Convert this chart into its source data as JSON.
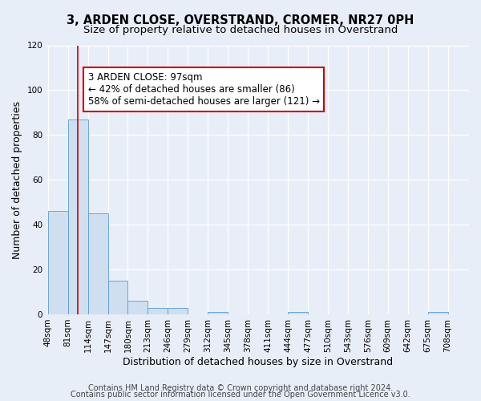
{
  "title": "3, ARDEN CLOSE, OVERSTRAND, CROMER, NR27 0PH",
  "subtitle": "Size of property relative to detached houses in Overstrand",
  "xlabel": "Distribution of detached houses by size in Overstrand",
  "ylabel": "Number of detached properties",
  "bin_labels": [
    "48sqm",
    "81sqm",
    "114sqm",
    "147sqm",
    "180sqm",
    "213sqm",
    "246sqm",
    "279sqm",
    "312sqm",
    "345sqm",
    "378sqm",
    "411sqm",
    "444sqm",
    "477sqm",
    "510sqm",
    "543sqm",
    "576sqm",
    "609sqm",
    "642sqm",
    "675sqm",
    "708sqm"
  ],
  "bin_edges": [
    48,
    81,
    114,
    147,
    180,
    213,
    246,
    279,
    312,
    345,
    378,
    411,
    444,
    477,
    510,
    543,
    576,
    609,
    642,
    675,
    708
  ],
  "bar_heights": [
    46,
    87,
    45,
    15,
    6,
    3,
    3,
    0,
    1,
    0,
    0,
    0,
    1,
    0,
    0,
    0,
    0,
    0,
    0,
    1,
    0
  ],
  "bar_color": "#cfdff0",
  "bar_edge_color": "#5b9bd5",
  "property_size": 97,
  "vline_color": "#cc0000",
  "ylim": [
    0,
    120
  ],
  "yticks": [
    0,
    20,
    40,
    60,
    80,
    100,
    120
  ],
  "annotation_text": "3 ARDEN CLOSE: 97sqm\n← 42% of detached houses are smaller (86)\n58% of semi-detached houses are larger (121) →",
  "annotation_box_color": "#ffffff",
  "annotation_box_edge_color": "#cc0000",
  "footer_line1": "Contains HM Land Registry data © Crown copyright and database right 2024.",
  "footer_line2": "Contains public sector information licensed under the Open Government Licence v3.0.",
  "background_color": "#e8eef8",
  "title_fontsize": 10.5,
  "subtitle_fontsize": 9.5,
  "axis_label_fontsize": 9,
  "tick_fontsize": 7.5,
  "annotation_fontsize": 8.5,
  "footer_fontsize": 7
}
